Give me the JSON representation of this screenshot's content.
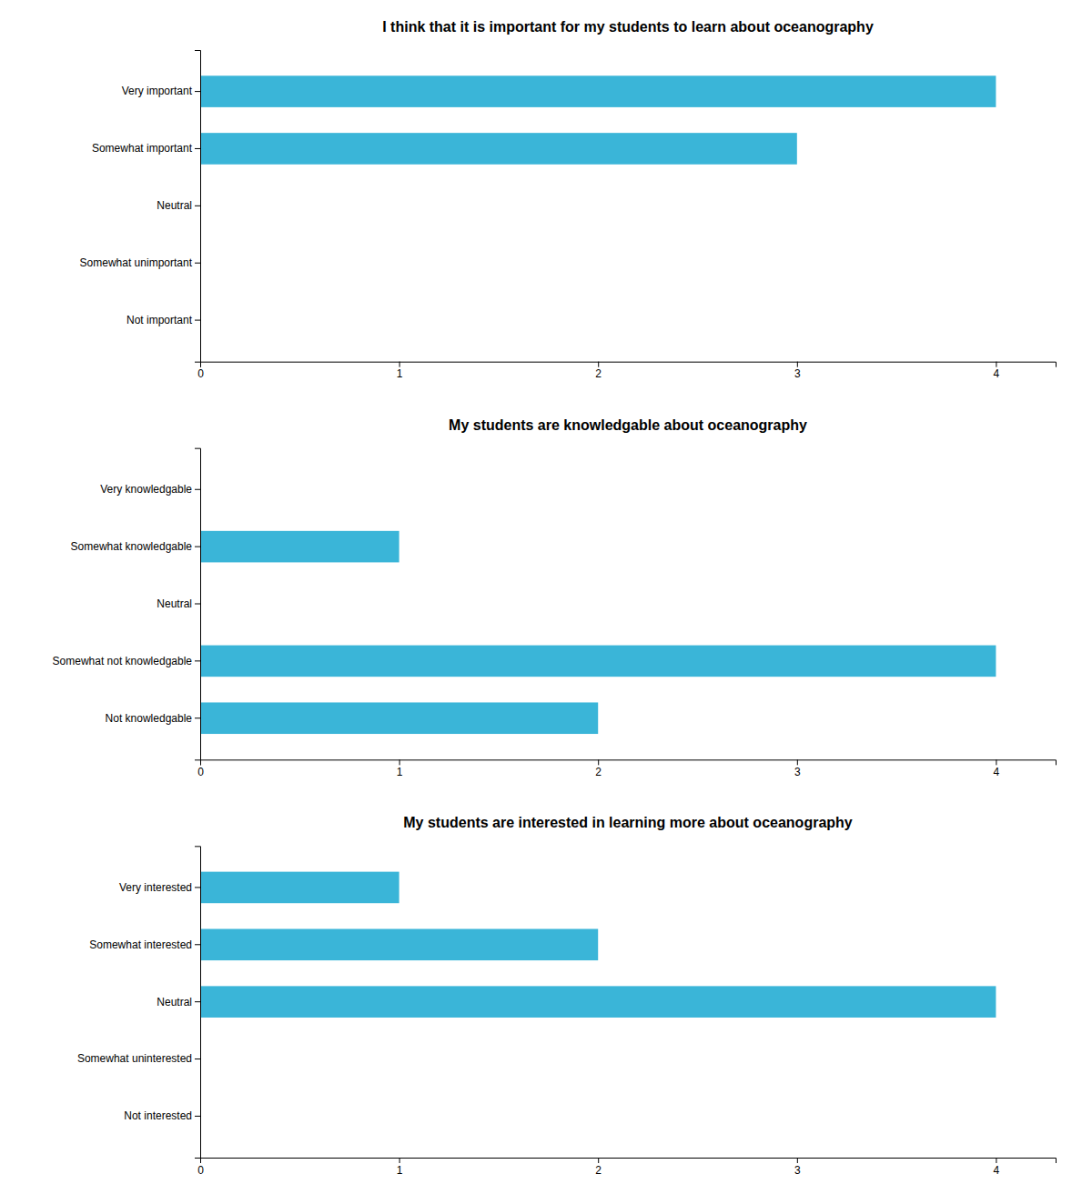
{
  "chart_data": [
    {
      "type": "bar",
      "orientation": "horizontal",
      "title": "I think that it is important for my students to learn about oceanography",
      "categories": [
        "Very important",
        "Somewhat important",
        "Neutral",
        "Somewhat unimportant",
        "Not important"
      ],
      "values": [
        4,
        3,
        0,
        0,
        0
      ],
      "color": "#3ab5d8",
      "xlim": [
        0,
        4.3
      ],
      "xticks": [
        0,
        1,
        2,
        3,
        4
      ],
      "grid": false
    },
    {
      "type": "bar",
      "orientation": "horizontal",
      "title": "My students are knowledgable about oceanography",
      "categories": [
        "Very knowledgable",
        "Somewhat knowledgable",
        "Neutral",
        "Somewhat not knowledgable",
        "Not knowledgable"
      ],
      "values": [
        0,
        1,
        0,
        4,
        2
      ],
      "color": "#3ab5d8",
      "xlim": [
        0,
        4.3
      ],
      "xticks": [
        0,
        1,
        2,
        3,
        4
      ],
      "grid": false
    },
    {
      "type": "bar",
      "orientation": "horizontal",
      "title": "My students are interested in learning more about oceanography",
      "categories": [
        "Very interested",
        "Somewhat interested",
        "Neutral",
        "Somewhat uninterested",
        "Not interested"
      ],
      "values": [
        1,
        2,
        4,
        0,
        0
      ],
      "color": "#3ab5d8",
      "xlim": [
        0,
        4.3
      ],
      "xticks": [
        0,
        1,
        2,
        3,
        4
      ],
      "grid": false
    }
  ]
}
